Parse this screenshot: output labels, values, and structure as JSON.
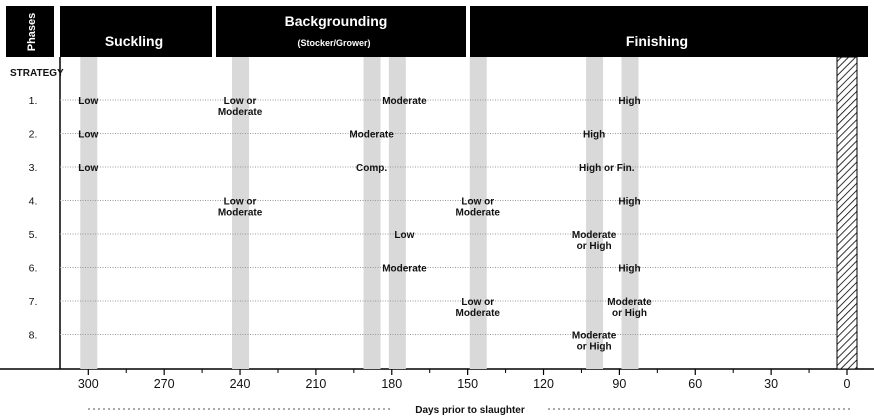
{
  "header": {
    "axis_title": "Phases",
    "phases": [
      {
        "title": "Suckling",
        "subtitle": ""
      },
      {
        "title": "Backgrounding",
        "subtitle": "(Stocker/Grower)"
      },
      {
        "title": "Finishing",
        "subtitle": ""
      }
    ]
  },
  "strategy_heading": "STRATEGY",
  "rows": [
    {
      "number": "1.",
      "labels": [
        {
          "day": 300,
          "text": [
            "Low"
          ]
        },
        {
          "day": 240,
          "text": [
            "Low or",
            "Moderate"
          ]
        },
        {
          "day": 175,
          "text": [
            "Moderate"
          ]
        },
        {
          "day": 86,
          "text": [
            "High"
          ]
        }
      ]
    },
    {
      "number": "2.",
      "labels": [
        {
          "day": 300,
          "text": [
            "Low"
          ]
        },
        {
          "day": 188,
          "text": [
            "Moderate"
          ]
        },
        {
          "day": 100,
          "text": [
            "High"
          ]
        }
      ]
    },
    {
      "number": "3.",
      "labels": [
        {
          "day": 300,
          "text": [
            "Low"
          ]
        },
        {
          "day": 188,
          "text": [
            "Comp."
          ]
        },
        {
          "day": 95,
          "text": [
            "High or Fin."
          ]
        }
      ]
    },
    {
      "number": "4.",
      "labels": [
        {
          "day": 240,
          "text": [
            "Low or",
            "Moderate"
          ]
        },
        {
          "day": 146,
          "text": [
            "Low or",
            "Moderate"
          ]
        },
        {
          "day": 86,
          "text": [
            "High"
          ]
        }
      ]
    },
    {
      "number": "5.",
      "labels": [
        {
          "day": 175,
          "text": [
            "Low"
          ]
        },
        {
          "day": 100,
          "text": [
            "Moderate",
            "or High"
          ]
        }
      ]
    },
    {
      "number": "6.",
      "labels": [
        {
          "day": 175,
          "text": [
            "Moderate"
          ]
        },
        {
          "day": 86,
          "text": [
            "High"
          ]
        }
      ]
    },
    {
      "number": "7.",
      "labels": [
        {
          "day": 146,
          "text": [
            "Low or",
            "Moderate"
          ]
        },
        {
          "day": 86,
          "text": [
            "Moderate",
            "or High"
          ]
        }
      ]
    },
    {
      "number": "8.",
      "labels": [
        {
          "day": 100,
          "text": [
            "Moderate",
            "or High"
          ]
        }
      ]
    }
  ],
  "transition_bands_days": [
    300,
    240,
    188,
    178,
    146,
    100,
    86
  ],
  "axis": {
    "ticks": [
      300,
      270,
      240,
      210,
      180,
      150,
      120,
      90,
      60,
      30,
      0
    ],
    "label": "Days prior to slaughter"
  },
  "colors": {
    "header_bg": "#000000",
    "header_text": "#ffffff",
    "band": "#d9d9d9",
    "row_line": "#9a9a9a",
    "text": "#111111"
  }
}
